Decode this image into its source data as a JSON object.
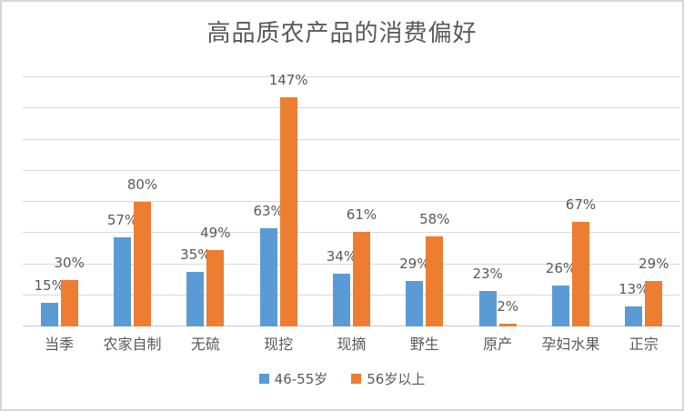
{
  "chart_data": {
    "type": "bar",
    "title": "高品质农产品的消费偏好",
    "categories": [
      "当季",
      "农家自制",
      "无硫",
      "现挖",
      "现摘",
      "野生",
      "原产",
      "孕妇水果",
      "正宗"
    ],
    "series": [
      {
        "name": "46-55岁",
        "color": "#5B9BD5",
        "values": [
          15,
          57,
          35,
          63,
          34,
          29,
          23,
          26,
          13
        ]
      },
      {
        "name": "56岁以上",
        "color": "#ED7D31",
        "values": [
          30,
          80,
          49,
          147,
          61,
          58,
          2,
          67,
          29
        ]
      }
    ],
    "value_suffix": "%",
    "xlabel": "",
    "ylabel": "",
    "ylim": [
      0,
      160
    ],
    "gridline_step": 20,
    "grid": true,
    "data_labels": true,
    "legend_position": "bottom"
  },
  "colors": {
    "title_text": "#595959",
    "label_text": "#595959",
    "gridline": "#D9D9D9",
    "axis_line": "#C9C9C9",
    "frame_border": "#D7D7D7",
    "background": "#FFFFFF"
  }
}
